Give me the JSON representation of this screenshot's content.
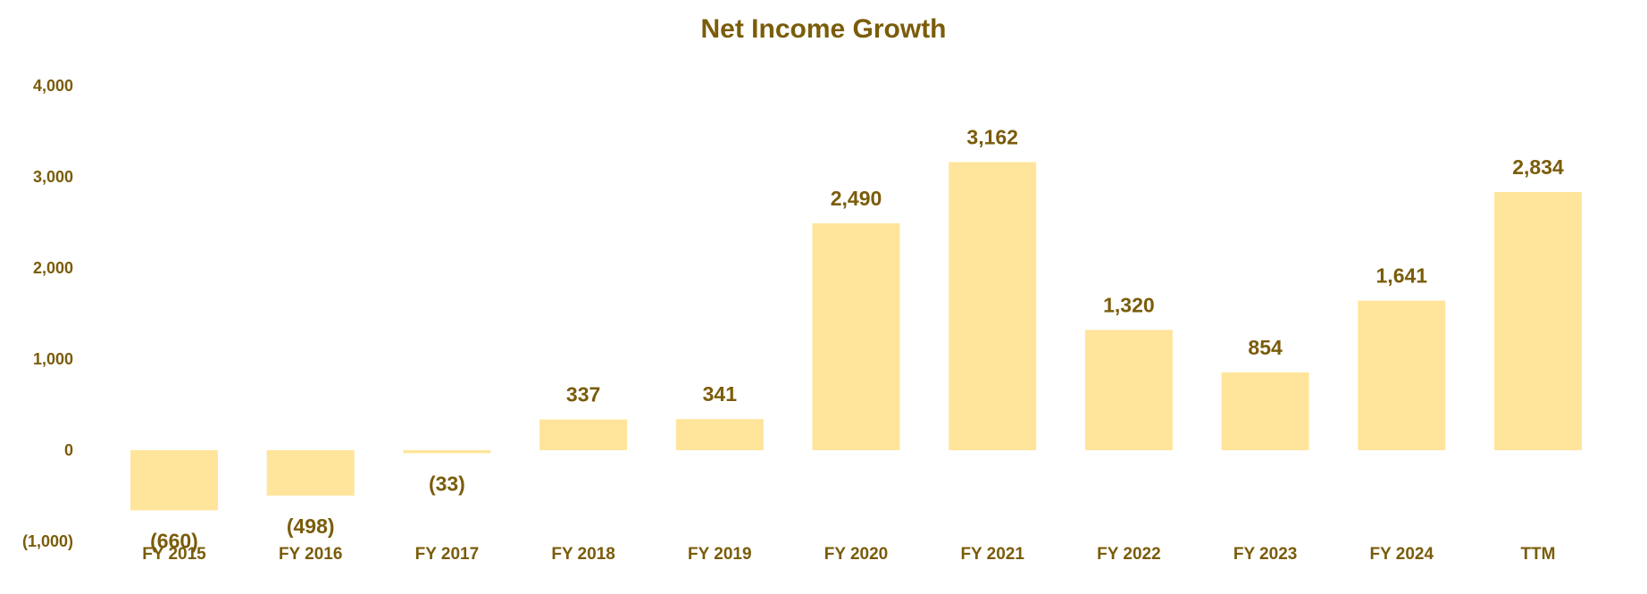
{
  "colors": {
    "text": "#7a5c0a",
    "bar": "#ffe59b"
  },
  "chart_data": {
    "type": "bar",
    "title": "Net Income Growth",
    "categories": [
      "FY 2015",
      "FY 2016",
      "FY 2017",
      "FY 2018",
      "FY 2019",
      "FY 2020",
      "FY 2021",
      "FY 2022",
      "FY 2023",
      "FY 2024",
      "TTM"
    ],
    "values": [
      -660,
      -498,
      -33,
      337,
      341,
      2490,
      3162,
      1320,
      854,
      1641,
      2834
    ],
    "data_labels": [
      "(660)",
      "(498)",
      "(33)",
      "337",
      "341",
      "2,490",
      "3,162",
      "1,320",
      "854",
      "1,641",
      "2,834"
    ],
    "yticks": [
      -1000,
      0,
      1000,
      2000,
      3000,
      4000
    ],
    "ytick_labels": [
      "(1,000)",
      "0",
      "1,000",
      "2,000",
      "3,000",
      "4,000"
    ],
    "ylim": [
      -1000,
      4000
    ],
    "xlabel": "",
    "ylabel": "",
    "grid": false,
    "legend": "none"
  }
}
